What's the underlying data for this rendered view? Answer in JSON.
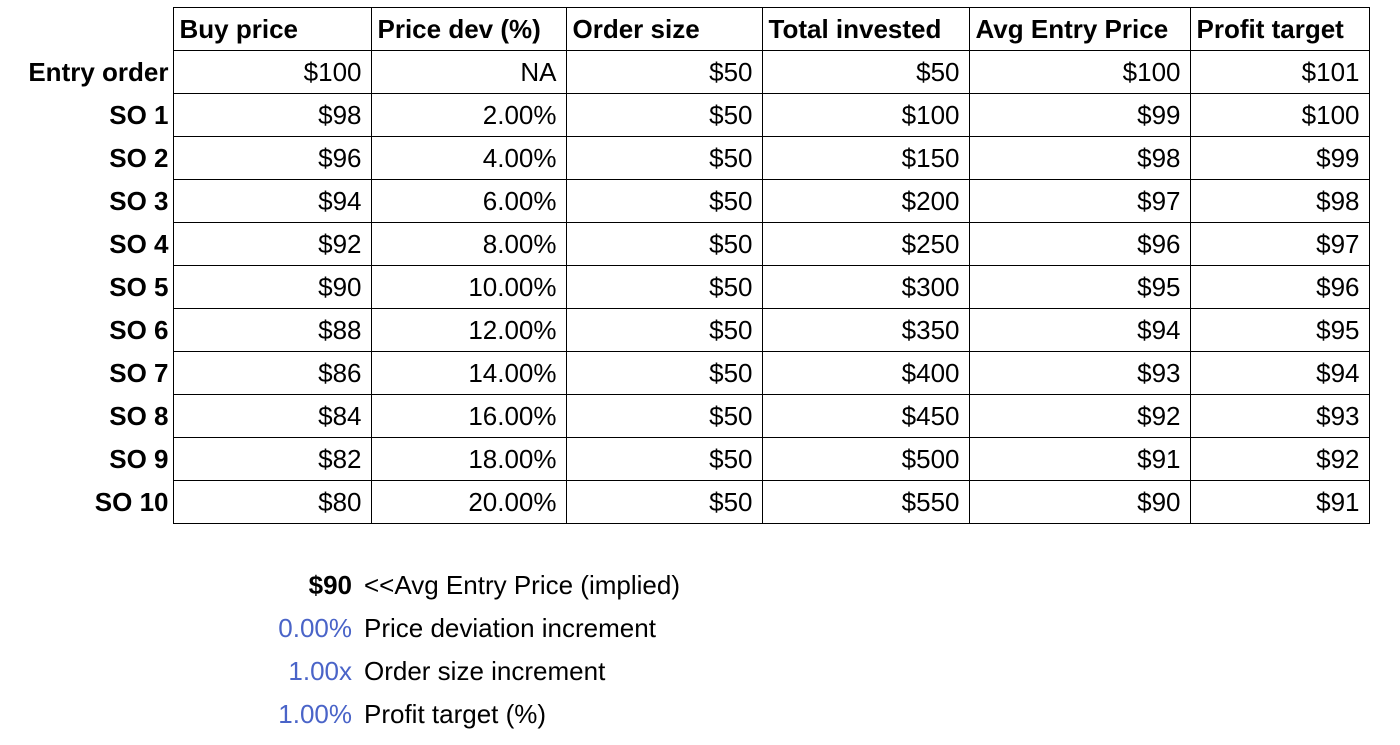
{
  "table": {
    "columns": [
      "Buy price",
      "Price dev (%)",
      "Order size",
      "Total invested",
      "Avg Entry Price",
      "Profit target"
    ],
    "rows": [
      {
        "label": "Entry order",
        "cells": [
          "$100",
          "NA",
          "$50",
          "$50",
          "$100",
          "$101"
        ]
      },
      {
        "label": "SO 1",
        "cells": [
          "$98",
          "2.00%",
          "$50",
          "$100",
          "$99",
          "$100"
        ]
      },
      {
        "label": "SO 2",
        "cells": [
          "$96",
          "4.00%",
          "$50",
          "$150",
          "$98",
          "$99"
        ]
      },
      {
        "label": "SO 3",
        "cells": [
          "$94",
          "6.00%",
          "$50",
          "$200",
          "$97",
          "$98"
        ]
      },
      {
        "label": "SO 4",
        "cells": [
          "$92",
          "8.00%",
          "$50",
          "$250",
          "$96",
          "$97"
        ]
      },
      {
        "label": "SO 5",
        "cells": [
          "$90",
          "10.00%",
          "$50",
          "$300",
          "$95",
          "$96"
        ]
      },
      {
        "label": "SO 6",
        "cells": [
          "$88",
          "12.00%",
          "$50",
          "$350",
          "$94",
          "$95"
        ]
      },
      {
        "label": "SO 7",
        "cells": [
          "$86",
          "14.00%",
          "$50",
          "$400",
          "$93",
          "$94"
        ]
      },
      {
        "label": "SO 8",
        "cells": [
          "$84",
          "16.00%",
          "$50",
          "$450",
          "$92",
          "$93"
        ]
      },
      {
        "label": "SO 9",
        "cells": [
          "$82",
          "18.00%",
          "$50",
          "$500",
          "$91",
          "$92"
        ]
      },
      {
        "label": "SO 10",
        "cells": [
          "$80",
          "20.00%",
          "$50",
          "$550",
          "$90",
          "$91"
        ]
      }
    ]
  },
  "notes": [
    {
      "value": "$90",
      "label": "<<Avg Entry Price (implied)",
      "style": "bold"
    },
    {
      "value": "0.00%",
      "label": "Price deviation increment",
      "style": "input"
    },
    {
      "value": "1.00x",
      "label": "Order size increment",
      "style": "input"
    },
    {
      "value": "1.00%",
      "label": "Profit target (%)",
      "style": "input"
    }
  ],
  "colors": {
    "input_value": "#4a64c8",
    "grid_border": "#000000"
  }
}
